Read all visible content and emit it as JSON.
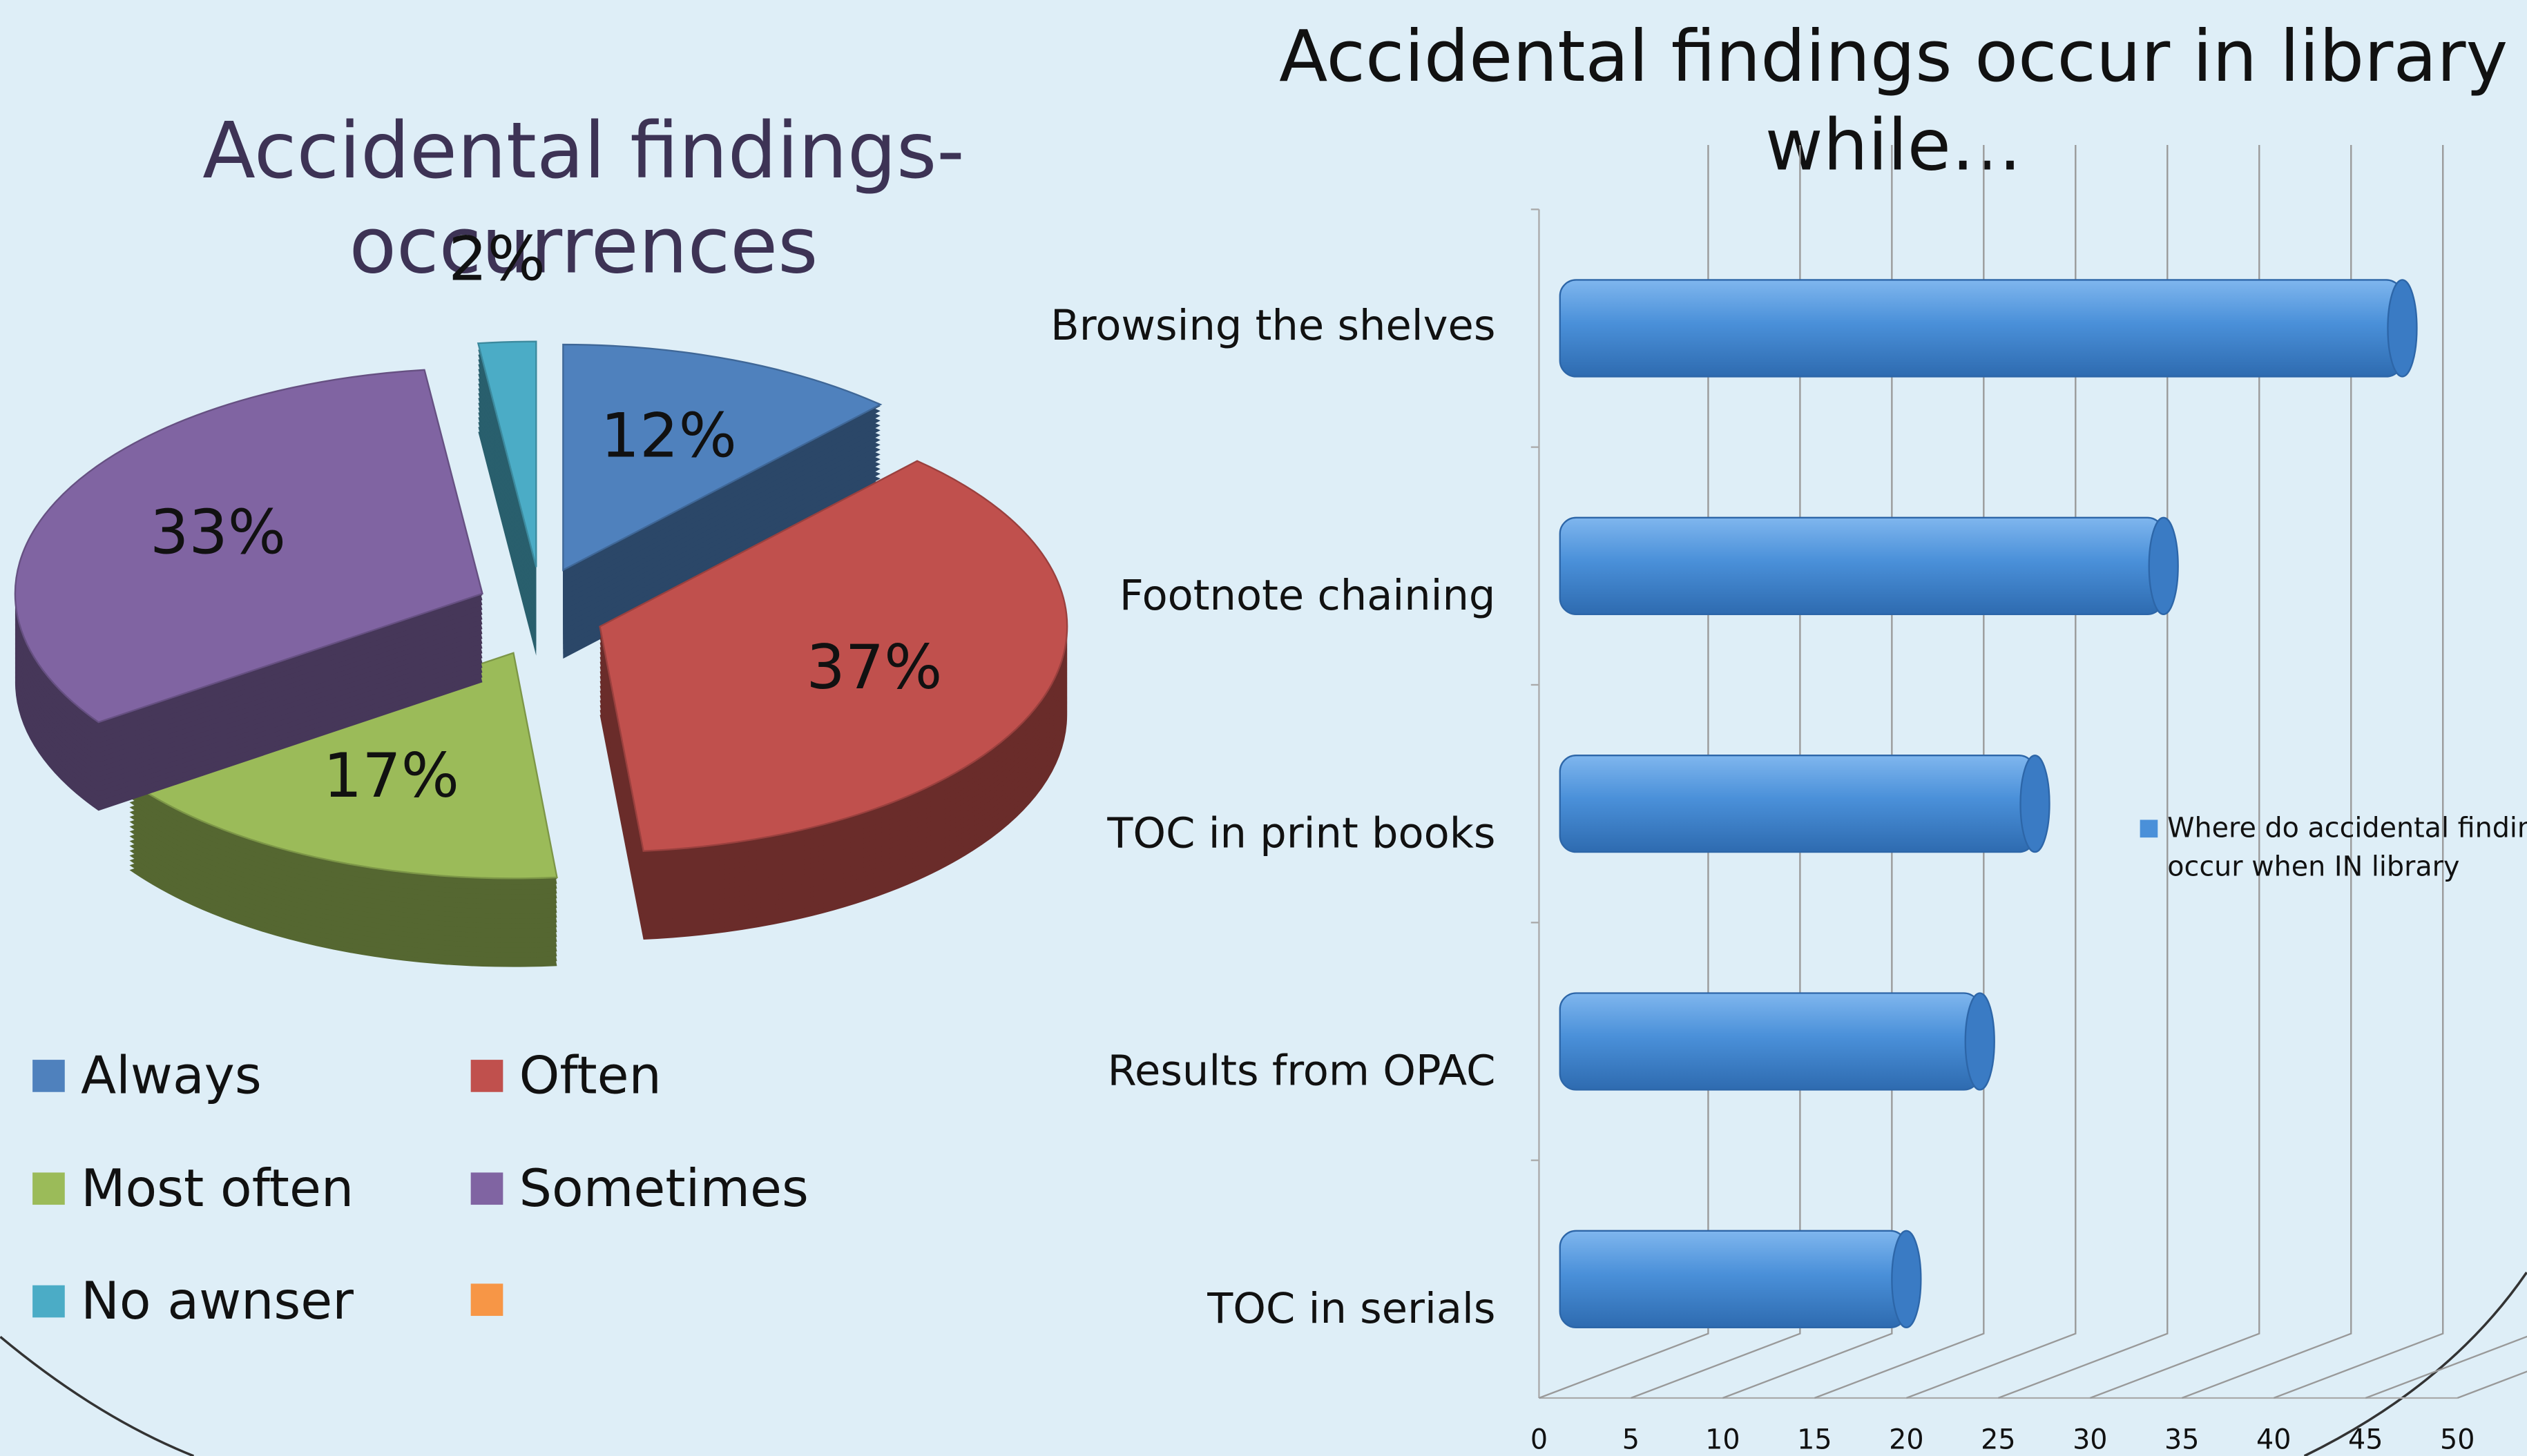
{
  "chart_data": [
    {
      "type": "pie",
      "title": [
        "Accidental findings-",
        "occurrences"
      ],
      "categories": [
        "Always",
        "Often",
        "Most often",
        "Sometimes",
        "No awnser"
      ],
      "values": [
        12,
        37,
        17,
        33,
        2
      ],
      "value_labels": [
        "12%",
        "37%",
        "17%",
        "33%",
        "2%"
      ],
      "colors": [
        "#4f81bd",
        "#c0504d",
        "#9bbb59",
        "#8064a2",
        "#4bacc6"
      ]
    },
    {
      "type": "hbar",
      "title": [
        "Accidental findings occur in library",
        "while…"
      ],
      "categories": [
        "Browsing the shelves",
        "Footnote chaining",
        "TOC in print books",
        "Results from OPAC",
        "TOC in serials"
      ],
      "series": [
        {
          "name": "Where do accidental findings occur when IN library",
          "color": "#4a90d9",
          "values": [
            47,
            34,
            27,
            24,
            20
          ]
        }
      ],
      "xlim": [
        0,
        50
      ],
      "xticks": [
        0,
        5,
        10,
        15,
        20,
        25,
        30,
        35,
        40,
        45,
        50
      ],
      "grid": true
    }
  ]
}
